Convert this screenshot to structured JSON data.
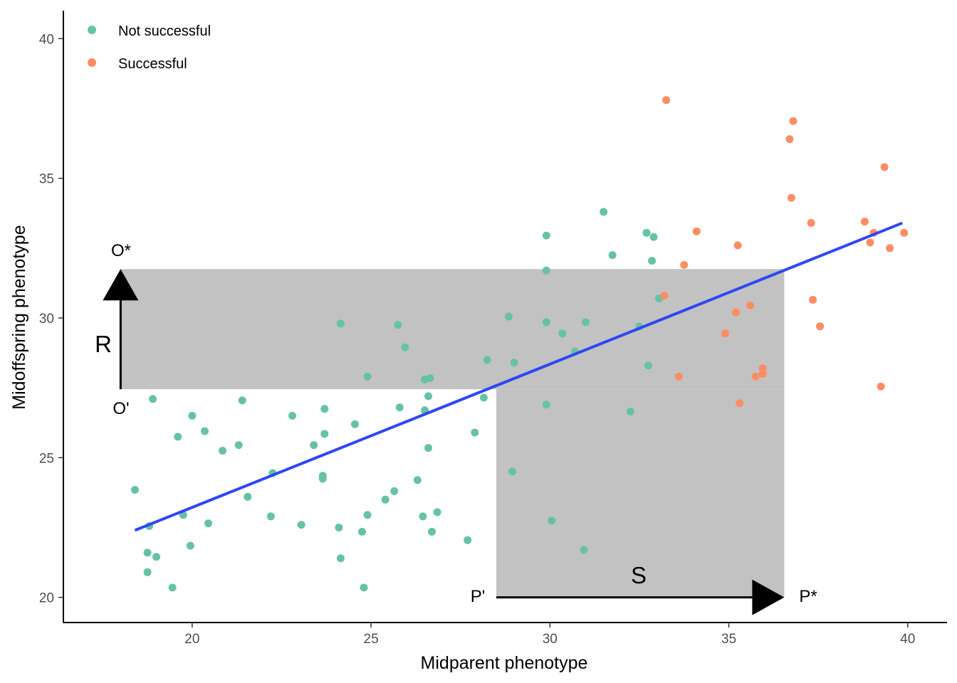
{
  "chart_data": {
    "type": "scatter",
    "xlabel": "Midparent phenotype",
    "ylabel": "Midoffspring phenotype",
    "xlim": [
      16.4,
      41.1
    ],
    "ylim": [
      19.1,
      41.0
    ],
    "xticks": [
      20,
      25,
      30,
      35,
      40
    ],
    "yticks": [
      20,
      25,
      30,
      35,
      40
    ],
    "grid": false,
    "legend_position": "top-left",
    "colors": {
      "not_successful": "#66c2a5",
      "successful": "#fc8d62",
      "regression": "#2d47f5",
      "selection_band": "#c2c2c2"
    },
    "series": [
      {
        "name": "Not successful",
        "color": "#66c2a5",
        "points": [
          [
            18.4,
            23.85
          ],
          [
            18.8,
            22.55
          ],
          [
            18.75,
            21.6
          ],
          [
            19.0,
            21.45
          ],
          [
            18.75,
            20.9
          ],
          [
            19.45,
            20.35
          ],
          [
            18.9,
            27.1
          ],
          [
            19.6,
            25.75
          ],
          [
            19.75,
            22.95
          ],
          [
            19.95,
            21.85
          ],
          [
            20.0,
            26.5
          ],
          [
            20.35,
            25.95
          ],
          [
            20.45,
            22.65
          ],
          [
            20.85,
            25.25
          ],
          [
            21.3,
            25.45
          ],
          [
            21.4,
            27.05
          ],
          [
            21.55,
            23.6
          ],
          [
            22.2,
            22.9
          ],
          [
            22.25,
            24.45
          ],
          [
            22.8,
            26.5
          ],
          [
            23.05,
            22.6
          ],
          [
            23.4,
            25.45
          ],
          [
            23.65,
            24.35
          ],
          [
            23.65,
            24.25
          ],
          [
            23.7,
            25.85
          ],
          [
            23.7,
            26.75
          ],
          [
            24.1,
            22.5
          ],
          [
            24.15,
            21.4
          ],
          [
            24.15,
            29.8
          ],
          [
            24.55,
            26.2
          ],
          [
            24.75,
            22.35
          ],
          [
            24.8,
            20.35
          ],
          [
            24.9,
            22.95
          ],
          [
            24.9,
            27.9
          ],
          [
            25.4,
            23.5
          ],
          [
            25.65,
            23.8
          ],
          [
            25.75,
            29.75
          ],
          [
            25.8,
            26.8
          ],
          [
            25.95,
            28.95
          ],
          [
            26.3,
            24.2
          ],
          [
            26.45,
            22.9
          ],
          [
            26.5,
            27.8
          ],
          [
            26.5,
            26.7
          ],
          [
            26.6,
            27.2
          ],
          [
            26.65,
            27.85
          ],
          [
            26.6,
            25.35
          ],
          [
            26.7,
            22.35
          ],
          [
            26.85,
            23.05
          ],
          [
            27.7,
            22.05
          ],
          [
            27.9,
            25.9
          ],
          [
            28.15,
            27.15
          ],
          [
            28.25,
            28.5
          ],
          [
            28.85,
            30.05
          ],
          [
            28.95,
            24.5
          ],
          [
            29.0,
            28.4
          ],
          [
            29.9,
            32.95
          ],
          [
            29.9,
            31.7
          ],
          [
            29.9,
            29.85
          ],
          [
            29.9,
            26.9
          ],
          [
            30.05,
            22.75
          ],
          [
            30.35,
            29.45
          ],
          [
            30.7,
            28.8
          ],
          [
            30.95,
            21.7
          ],
          [
            31.0,
            29.85
          ],
          [
            31.5,
            33.8
          ],
          [
            31.75,
            32.25
          ],
          [
            32.25,
            26.65
          ],
          [
            32.5,
            29.7
          ],
          [
            32.7,
            33.05
          ],
          [
            32.75,
            28.3
          ],
          [
            32.85,
            32.05
          ],
          [
            32.9,
            32.9
          ],
          [
            33.05,
            30.7
          ]
        ]
      },
      {
        "name": "Successful",
        "color": "#fc8d62",
        "points": [
          [
            33.25,
            37.8
          ],
          [
            33.2,
            30.8
          ],
          [
            33.6,
            27.9
          ],
          [
            33.75,
            31.9
          ],
          [
            34.1,
            33.1
          ],
          [
            34.9,
            29.45
          ],
          [
            35.2,
            30.2
          ],
          [
            35.25,
            32.6
          ],
          [
            35.3,
            26.95
          ],
          [
            35.6,
            30.45
          ],
          [
            35.75,
            27.9
          ],
          [
            35.95,
            28.2
          ],
          [
            35.95,
            28.0
          ],
          [
            36.7,
            36.4
          ],
          [
            36.75,
            34.3
          ],
          [
            36.8,
            37.05
          ],
          [
            37.3,
            33.4
          ],
          [
            37.35,
            30.65
          ],
          [
            37.55,
            29.7
          ],
          [
            38.8,
            33.45
          ],
          [
            38.95,
            32.7
          ],
          [
            39.05,
            33.05
          ],
          [
            39.25,
            27.55
          ],
          [
            39.35,
            35.4
          ],
          [
            39.5,
            32.5
          ],
          [
            39.9,
            33.05
          ]
        ]
      }
    ],
    "regression_line": {
      "x": [
        18.4,
        39.85
      ],
      "y": [
        22.4,
        33.4
      ]
    },
    "selection_region": {
      "parent_mean": 28.5,
      "selected_parent_mean": 36.55,
      "offspring_mean": 27.45,
      "selected_offspring_mean": 31.75
    },
    "annotations": {
      "o_star": "O*",
      "o_prime": "O'",
      "r": "R",
      "p_prime": "P'",
      "p_star": "P*",
      "s": "S"
    }
  }
}
